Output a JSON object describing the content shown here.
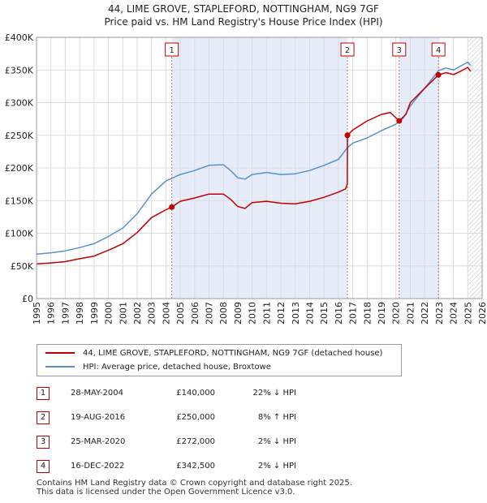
{
  "title_line1": "44, LIME GROVE, STAPLEFORD, NOTTINGHAM, NG9 7GF",
  "title_line2": "Price paid vs. HM Land Registry's House Price Index (HPI)",
  "legend": {
    "property": "44, LIME GROVE, STAPLEFORD, NOTTINGHAM, NG9 7GF (detached house)",
    "hpi": "HPI: Average price, detached house, Broxtowe"
  },
  "colors": {
    "property": "#c00000",
    "hpi": "#5b8fd0",
    "shade": "#e6ecfa",
    "marker_border": "#c00000"
  },
  "sales": [
    {
      "num": "1",
      "date": "28-MAY-2004",
      "price": "£140,000",
      "pct": "22% ↓ HPI"
    },
    {
      "num": "2",
      "date": "19-AUG-2016",
      "price": "£250,000",
      "pct": "8% ↑ HPI"
    },
    {
      "num": "3",
      "date": "25-MAR-2020",
      "price": "£272,000",
      "pct": "2% ↓ HPI"
    },
    {
      "num": "4",
      "date": "16-DEC-2022",
      "price": "£342,500",
      "pct": "2% ↓ HPI"
    }
  ],
  "footer_line1": "Contains HM Land Registry data © Crown copyright and database right 2025.",
  "footer_line2": "This data is licensed under the Open Government Licence v3.0.",
  "chart_data": {
    "type": "line",
    "x_range": [
      1995,
      2026
    ],
    "y_range": [
      0,
      400000
    ],
    "x_ticks": [
      "1995",
      "1996",
      "1997",
      "1998",
      "1999",
      "2000",
      "2001",
      "2002",
      "2003",
      "2004",
      "2005",
      "2006",
      "2007",
      "2008",
      "2009",
      "2010",
      "2011",
      "2012",
      "2013",
      "2014",
      "2015",
      "2016",
      "2017",
      "2018",
      "2019",
      "2020",
      "2021",
      "2022",
      "2023",
      "2024",
      "2025",
      "2026"
    ],
    "y_ticks": [
      {
        "value": 0,
        "label": "£0"
      },
      {
        "value": 50000,
        "label": "£50K"
      },
      {
        "value": 100000,
        "label": "£100K"
      },
      {
        "value": 150000,
        "label": "£150K"
      },
      {
        "value": 200000,
        "label": "£200K"
      },
      {
        "value": 250000,
        "label": "£250K"
      },
      {
        "value": 300000,
        "label": "£300K"
      },
      {
        "value": 350000,
        "label": "£350K"
      },
      {
        "value": 400000,
        "label": "£400K"
      }
    ],
    "sale_markers": [
      {
        "num": "1",
        "x": 2004.41,
        "y": 140000
      },
      {
        "num": "2",
        "x": 2016.63,
        "y": 250000
      },
      {
        "num": "3",
        "x": 2020.23,
        "y": 272000
      },
      {
        "num": "4",
        "x": 2022.96,
        "y": 342500
      }
    ],
    "shaded_spans": [
      [
        2004.41,
        2016.63
      ],
      [
        2020.23,
        2022.96
      ]
    ],
    "hatch_from": 2025.0,
    "series": [
      {
        "name": "HPI: Average price, detached house, Broxtowe",
        "points": [
          [
            1995,
            68000
          ],
          [
            1996,
            70000
          ],
          [
            1997,
            73000
          ],
          [
            1998,
            78000
          ],
          [
            1999,
            84000
          ],
          [
            2000,
            95000
          ],
          [
            2001,
            108000
          ],
          [
            2002,
            130000
          ],
          [
            2003,
            160000
          ],
          [
            2004,
            180000
          ],
          [
            2005,
            190000
          ],
          [
            2006,
            196000
          ],
          [
            2007,
            204000
          ],
          [
            2008,
            205000
          ],
          [
            2008.5,
            196000
          ],
          [
            2009,
            185000
          ],
          [
            2009.5,
            183000
          ],
          [
            2010,
            190000
          ],
          [
            2011,
            193000
          ],
          [
            2012,
            190000
          ],
          [
            2013,
            191000
          ],
          [
            2014,
            196000
          ],
          [
            2015,
            204000
          ],
          [
            2016,
            213000
          ],
          [
            2016.63,
            231000
          ],
          [
            2017,
            238000
          ],
          [
            2018,
            246000
          ],
          [
            2019,
            257000
          ],
          [
            2020,
            267000
          ],
          [
            2020.5,
            276000
          ],
          [
            2021,
            295000
          ],
          [
            2022,
            322000
          ],
          [
            2022.96,
            349000
          ],
          [
            2023.5,
            353000
          ],
          [
            2024,
            350000
          ],
          [
            2024.5,
            356000
          ],
          [
            2025,
            362000
          ],
          [
            2025.2,
            357000
          ]
        ]
      },
      {
        "name": "44, LIME GROVE, STAPLEFORD, NOTTINGHAM, NG9 7GF (detached house)",
        "points": [
          [
            1995,
            53000
          ],
          [
            1996,
            54500
          ],
          [
            1997,
            56500
          ],
          [
            1998,
            61000
          ],
          [
            1999,
            65000
          ],
          [
            2000,
            74000
          ],
          [
            2001,
            84000
          ],
          [
            2002,
            101000
          ],
          [
            2003,
            124000
          ],
          [
            2004,
            136000
          ],
          [
            2004.41,
            140000
          ],
          [
            2005,
            149000
          ],
          [
            2006,
            154000
          ],
          [
            2007,
            160000
          ],
          [
            2008,
            160000
          ],
          [
            2008.5,
            152000
          ],
          [
            2009,
            141000
          ],
          [
            2009.5,
            138000
          ],
          [
            2010,
            147000
          ],
          [
            2011,
            149000
          ],
          [
            2012,
            146000
          ],
          [
            2013,
            145000
          ],
          [
            2014,
            149000
          ],
          [
            2015,
            155000
          ],
          [
            2016,
            163000
          ],
          [
            2016.5,
            168000
          ],
          [
            2016.62,
            175000
          ],
          [
            2016.63,
            250000
          ],
          [
            2017,
            258000
          ],
          [
            2018,
            272000
          ],
          [
            2019,
            282000
          ],
          [
            2019.6,
            285000
          ],
          [
            2020.23,
            272000
          ],
          [
            2020.7,
            282000
          ],
          [
            2021,
            300000
          ],
          [
            2022,
            322000
          ],
          [
            2022.96,
            342500
          ],
          [
            2023.5,
            346000
          ],
          [
            2024,
            343000
          ],
          [
            2024.5,
            348000
          ],
          [
            2025,
            354000
          ],
          [
            2025.2,
            348000
          ]
        ]
      }
    ]
  }
}
